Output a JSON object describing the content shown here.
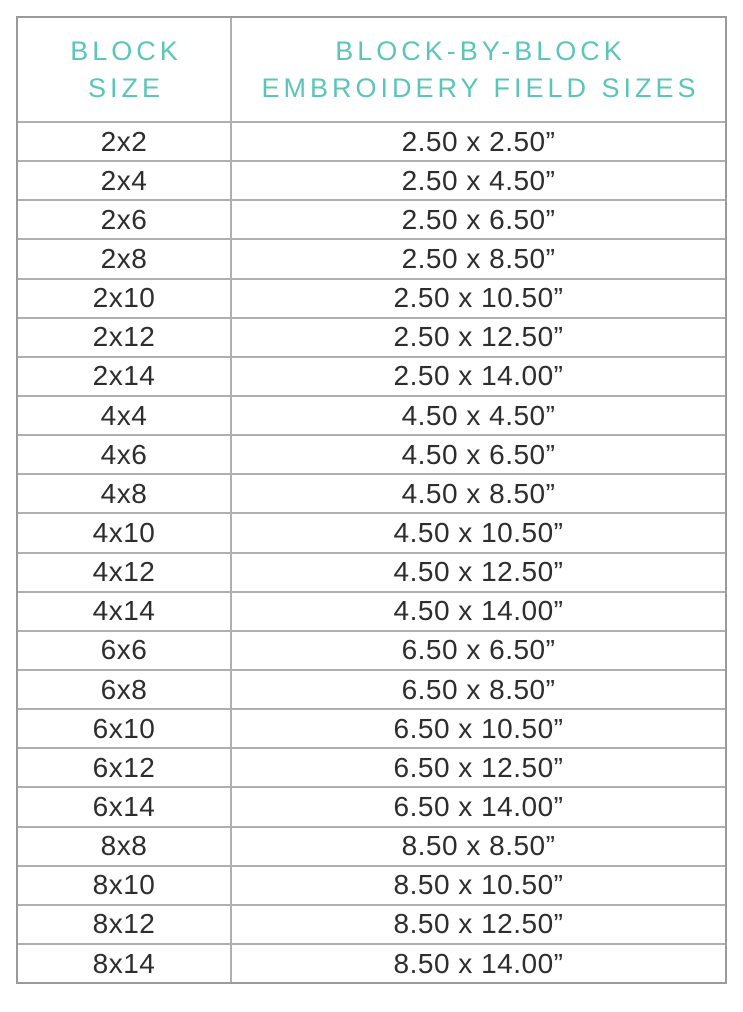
{
  "chart_data": {
    "type": "table",
    "title": "Block-by-block embroidery field sizes",
    "columns": [
      "BLOCK SIZE",
      "BLOCK-BY-BLOCK EMBROIDERY FIELD SIZES"
    ],
    "header": {
      "col1_line1": "BLOCK",
      "col1_line2": "SIZE",
      "col2_line1": "BLOCK-BY-BLOCK",
      "col2_line2": "EMBROIDERY FIELD SIZES"
    },
    "rows": [
      [
        "2x2",
        "2.50 x 2.50”"
      ],
      [
        "2x4",
        "2.50 x 4.50”"
      ],
      [
        "2x6",
        "2.50 x 6.50”"
      ],
      [
        "2x8",
        "2.50 x 8.50”"
      ],
      [
        "2x10",
        "2.50 x 10.50”"
      ],
      [
        "2x12",
        "2.50 x 12.50”"
      ],
      [
        "2x14",
        "2.50 x 14.00”"
      ],
      [
        "4x4",
        "4.50 x 4.50”"
      ],
      [
        "4x6",
        "4.50 x 6.50”"
      ],
      [
        "4x8",
        "4.50 x 8.50”"
      ],
      [
        "4x10",
        "4.50 x 10.50”"
      ],
      [
        "4x12",
        "4.50 x 12.50”"
      ],
      [
        "4x14",
        "4.50 x 14.00”"
      ],
      [
        "6x6",
        "6.50 x 6.50”"
      ],
      [
        "6x8",
        "6.50 x 8.50”"
      ],
      [
        "6x10",
        "6.50 x 10.50”"
      ],
      [
        "6x12",
        "6.50 x 12.50”"
      ],
      [
        "6x14",
        "6.50 x 14.00”"
      ],
      [
        "8x8",
        "8.50 x 8.50”"
      ],
      [
        "8x10",
        "8.50 x 10.50”"
      ],
      [
        "8x12",
        "8.50 x 12.50”"
      ],
      [
        "8x14",
        "8.50 x 14.00”"
      ]
    ]
  },
  "colors": {
    "header_text": "#5BC5BA",
    "body_text": "#2D2D2D",
    "border_outer": "#9A9A9A",
    "border_inner": "#AFAFAF",
    "background": "#FFFFFF"
  }
}
